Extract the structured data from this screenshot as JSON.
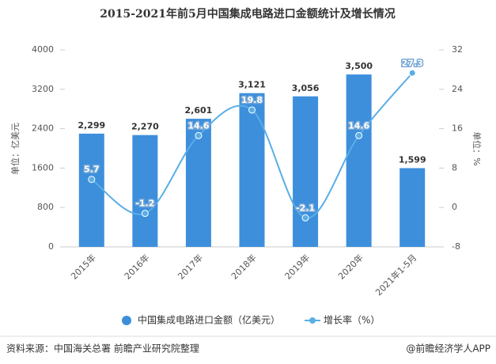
{
  "chart_data": {
    "type": "bar",
    "title": "2015-2021年前5月中国集成电路进口金额统计及增长情况",
    "categories": [
      "2015年",
      "2016年",
      "2017年",
      "2018年",
      "2019年",
      "2020年",
      "2021年1-5月"
    ],
    "series": [
      {
        "name": "中国集成电路进口金额（亿美元）",
        "type": "bar",
        "color": "#3d8fdc",
        "values": [
          2299,
          2270,
          2601,
          3121,
          3056,
          3500,
          1599
        ],
        "value_labels": [
          "2,299",
          "2,270",
          "2,601",
          "3,121",
          "3,056",
          "3,500",
          "1,599"
        ]
      },
      {
        "name": "增长率（%）",
        "type": "line",
        "axis": "y2",
        "color": "#5aaee6",
        "values": [
          5.7,
          -1.2,
          14.6,
          19.8,
          -2.1,
          14.6,
          27.3
        ]
      }
    ],
    "ylim": [
      0,
      4000
    ],
    "yticks": [
      0,
      800,
      1600,
      2400,
      3200,
      4000
    ],
    "y2lim": [
      -8,
      32
    ],
    "y2ticks": [
      -8,
      0,
      8,
      16,
      24,
      32
    ],
    "ylabel": "单位：亿美元",
    "y2label": "单位：%",
    "source": "资料来源：中国海关总署 前瞻产业研究院整理",
    "credit": "@前瞻经济学人APP"
  }
}
